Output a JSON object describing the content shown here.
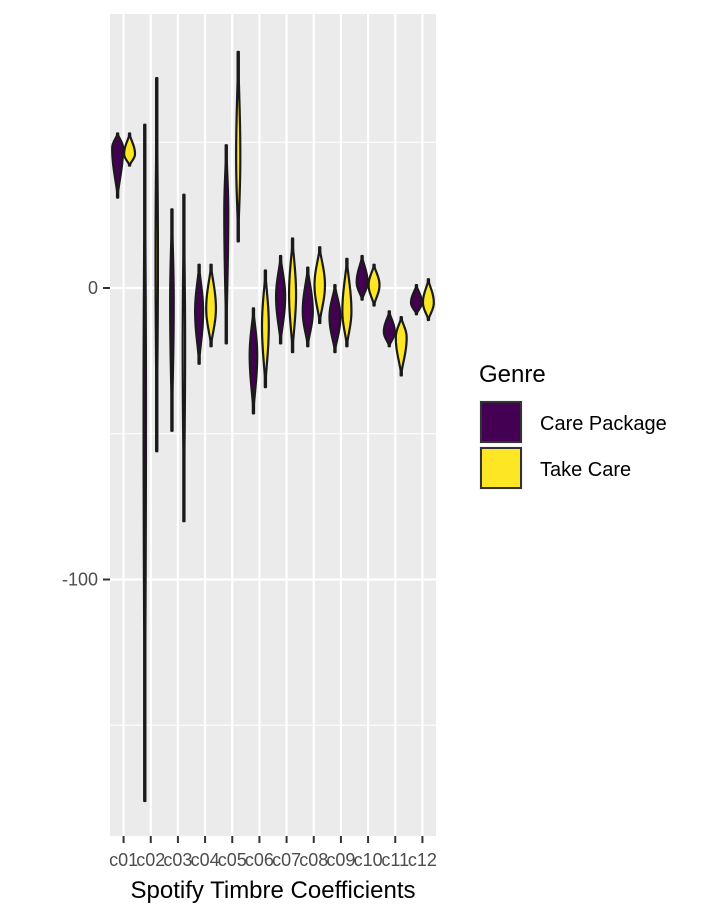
{
  "chart_data": {
    "type": "violin",
    "xlabel": "Spotify Timbre Coefficients",
    "ylabel": "",
    "ylim": [
      -188,
      94
    ],
    "y_ticks": [
      -100,
      0
    ],
    "grid": true,
    "categories": [
      "c01",
      "c02",
      "c03",
      "c04",
      "c05",
      "c06",
      "c07",
      "c08",
      "c09",
      "c10",
      "c11",
      "c12"
    ],
    "legend": {
      "title": "Genre",
      "position": "right"
    },
    "series": [
      {
        "name": "Care Package",
        "color": "#440154",
        "violins": [
          {
            "category": "c01",
            "min": 31,
            "max": 53,
            "widest": 48
          },
          {
            "category": "c02",
            "min": -176,
            "max": 56,
            "widest": -40
          },
          {
            "category": "c03",
            "min": -49,
            "max": 27,
            "widest": -5
          },
          {
            "category": "c04",
            "min": -26,
            "max": 8,
            "widest": -8
          },
          {
            "category": "c05",
            "min": -19,
            "max": 49,
            "widest": 26
          },
          {
            "category": "c06",
            "min": -43,
            "max": -7,
            "widest": -23
          },
          {
            "category": "c07",
            "min": -19,
            "max": 11,
            "widest": -3
          },
          {
            "category": "c08",
            "min": -20,
            "max": 7,
            "widest": -8
          },
          {
            "category": "c09",
            "min": -22,
            "max": 1,
            "widest": -10
          },
          {
            "category": "c10",
            "min": -4,
            "max": 11,
            "widest": 2
          },
          {
            "category": "c11",
            "min": -20,
            "max": -8,
            "widest": -15
          },
          {
            "category": "c12",
            "min": -9,
            "max": 1,
            "widest": -5
          }
        ]
      },
      {
        "name": "Take Care",
        "color": "#fde725",
        "violins": [
          {
            "category": "c01",
            "min": 42,
            "max": 53,
            "widest": 46
          },
          {
            "category": "c02",
            "min": -56,
            "max": 72,
            "widest": 10
          },
          {
            "category": "c03",
            "min": -80,
            "max": 32,
            "widest": -20
          },
          {
            "category": "c04",
            "min": -20,
            "max": 8,
            "widest": -7
          },
          {
            "category": "c05",
            "min": 16,
            "max": 81,
            "widest": 45
          },
          {
            "category": "c06",
            "min": -34,
            "max": 6,
            "widest": -13
          },
          {
            "category": "c07",
            "min": -22,
            "max": 17,
            "widest": -2
          },
          {
            "category": "c08",
            "min": -12,
            "max": 14,
            "widest": 1
          },
          {
            "category": "c09",
            "min": -20,
            "max": 10,
            "widest": -8
          },
          {
            "category": "c10",
            "min": -6,
            "max": 8,
            "widest": 1
          },
          {
            "category": "c11",
            "min": -30,
            "max": -10,
            "widest": -17
          },
          {
            "category": "c12",
            "min": -11,
            "max": 3,
            "widest": -5
          }
        ]
      }
    ]
  }
}
